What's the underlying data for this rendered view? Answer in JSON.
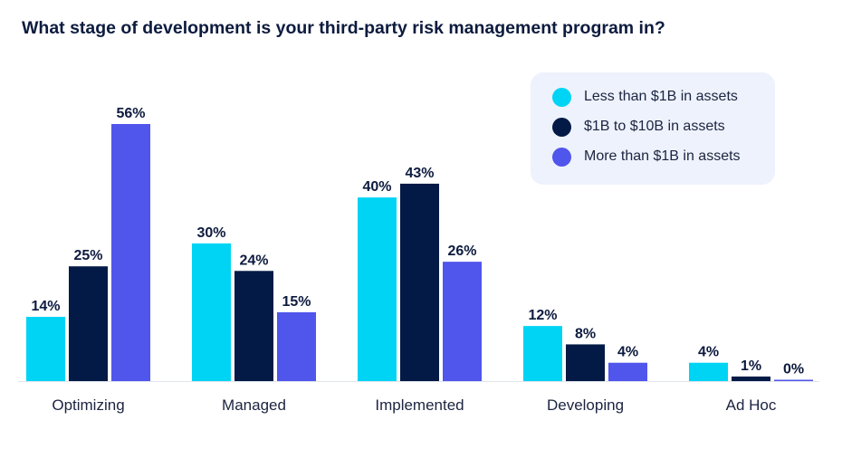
{
  "chart_data": {
    "type": "bar",
    "title": "What stage of development is your third-party risk management program in?",
    "categories": [
      "Optimizing",
      "Managed",
      "Implemented",
      "Developing",
      "Ad Hoc"
    ],
    "series": [
      {
        "name": "Less than $1B in assets",
        "color": "#00d4f5",
        "values": [
          14,
          30,
          40,
          12,
          4
        ]
      },
      {
        "name": "$1B to $10B in assets",
        "color": "#021a45",
        "values": [
          25,
          24,
          43,
          8,
          1
        ]
      },
      {
        "name": "More than $1B in assets",
        "color": "#5055ec",
        "values": [
          56,
          15,
          26,
          4,
          0
        ]
      }
    ],
    "value_suffix": "%",
    "ylim": [
      0,
      60
    ],
    "grid": false,
    "legend_position": "top-right"
  }
}
